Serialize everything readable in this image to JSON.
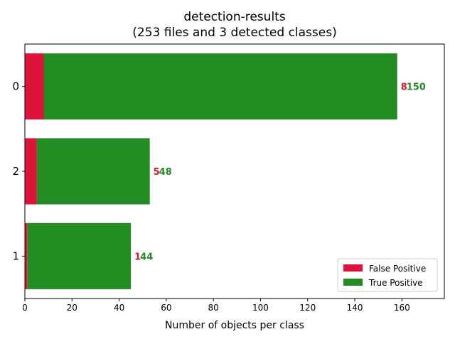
{
  "chart_data": {
    "type": "bar",
    "orientation": "horizontal",
    "stacked": true,
    "title": "detection-results",
    "subtitle": "(253 files and 3 detected classes)",
    "xlabel": "Number of objects per class",
    "ylabel": "",
    "categories": [
      "0",
      "2",
      "1"
    ],
    "series": [
      {
        "name": "False Positive",
        "color": "#DC143C",
        "values": [
          8,
          5,
          1
        ]
      },
      {
        "name": "True Positive",
        "color": "#228B22",
        "values": [
          150,
          48,
          44
        ]
      }
    ],
    "xlim": [
      0,
      178
    ],
    "xticks": [
      0,
      20,
      40,
      60,
      80,
      100,
      120,
      140,
      160
    ],
    "grid": false,
    "legend_position": "bottom-right"
  }
}
